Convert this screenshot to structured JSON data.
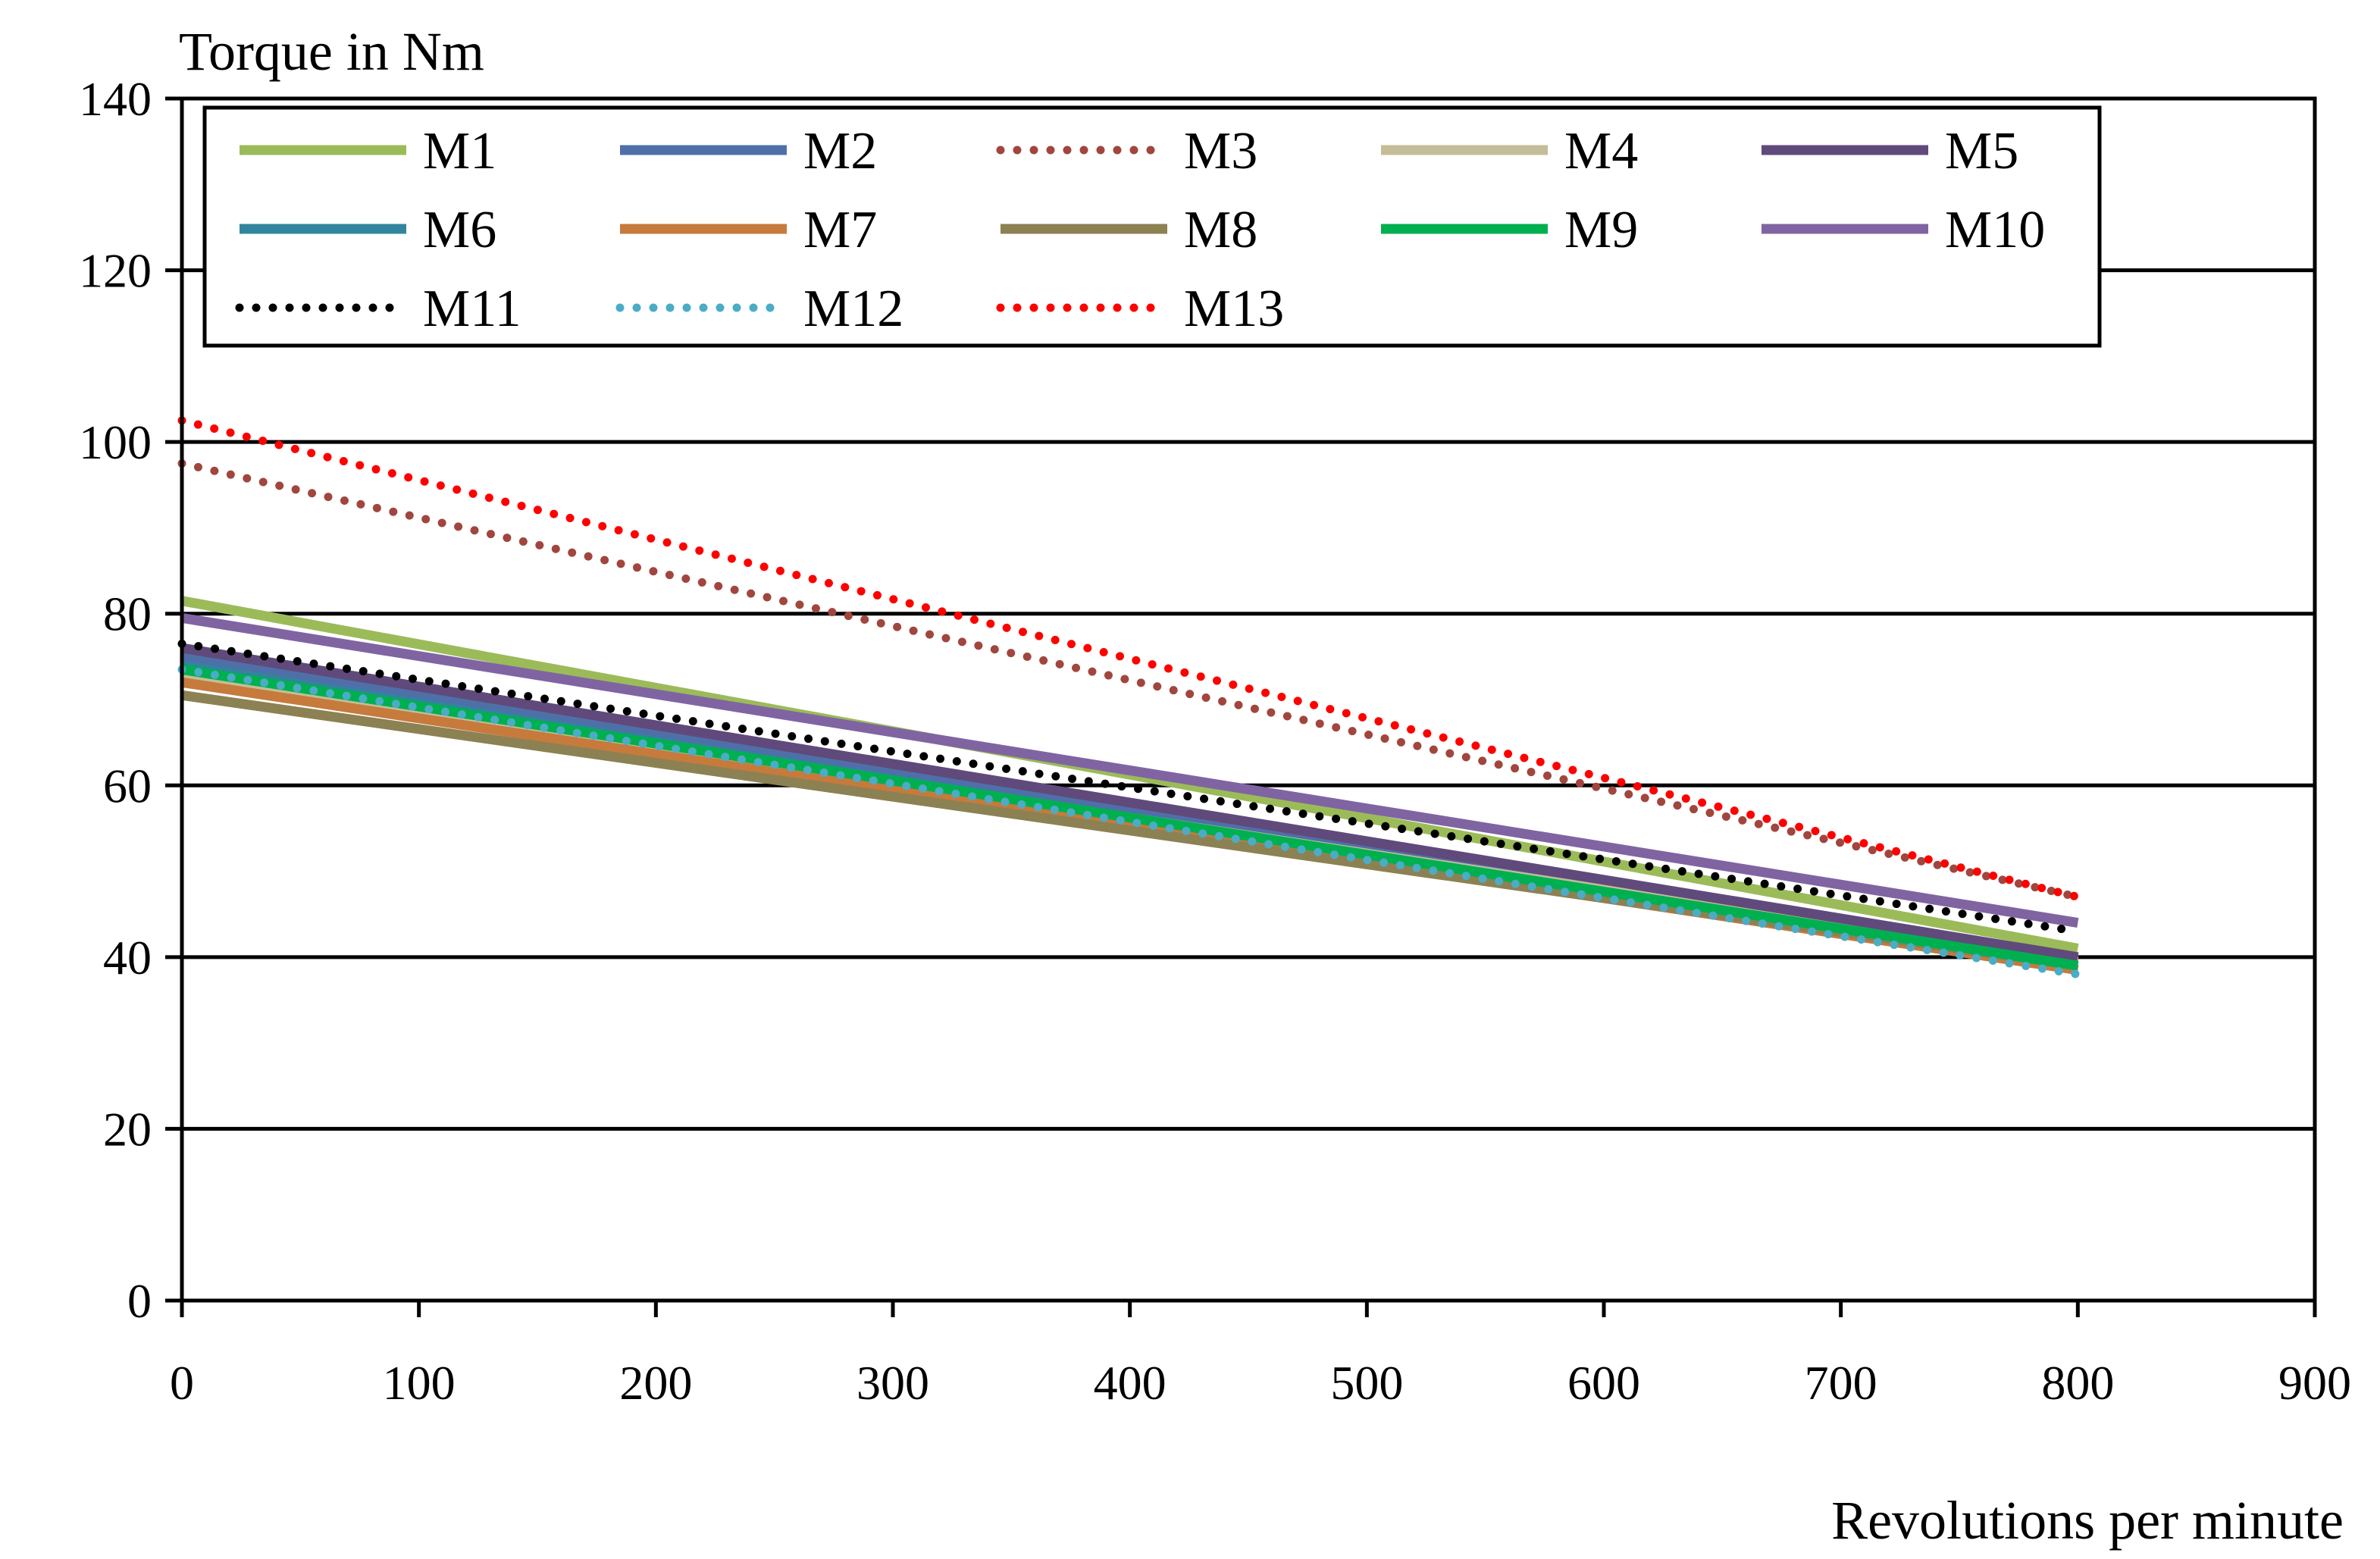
{
  "chart_data": {
    "type": "line",
    "title": "",
    "xlabel": "Revolutions per minute",
    "ylabel": "Torque in Nm",
    "xlim": [
      0,
      900
    ],
    "ylim": [
      0,
      140
    ],
    "x_ticks": [
      "0",
      "100",
      "200",
      "300",
      "400",
      "500",
      "600",
      "700",
      "800",
      "900"
    ],
    "y_ticks": [
      "0",
      "20",
      "40",
      "60",
      "80",
      "100",
      "120",
      "140"
    ],
    "grid": "horizontal",
    "legend_position": "top",
    "series": [
      {
        "name": "M1",
        "x": [
          0,
          800
        ],
        "values": [
          81.5,
          41.0
        ],
        "color": "#9bbb59",
        "dash": "solid"
      },
      {
        "name": "M2",
        "x": [
          0,
          800
        ],
        "values": [
          75.0,
          39.5
        ],
        "color": "#4f6fa8",
        "dash": "solid"
      },
      {
        "name": "M3",
        "x": [
          0,
          800
        ],
        "values": [
          97.5,
          47.0
        ],
        "color": "#a0463e",
        "dash": "dotted"
      },
      {
        "name": "M4",
        "x": [
          0,
          800
        ],
        "values": [
          73.0,
          39.5
        ],
        "color": "#c4bd97",
        "dash": "solid"
      },
      {
        "name": "M5",
        "x": [
          0,
          800
        ],
        "values": [
          76.0,
          40.0
        ],
        "color": "#604a7b",
        "dash": "solid"
      },
      {
        "name": "M6",
        "x": [
          0,
          800
        ],
        "values": [
          74.0,
          38.5
        ],
        "color": "#31859c",
        "dash": "solid"
      },
      {
        "name": "M7",
        "x": [
          0,
          800
        ],
        "values": [
          72.0,
          38.5
        ],
        "color": "#c67a3c",
        "dash": "solid"
      },
      {
        "name": "M8",
        "x": [
          0,
          800
        ],
        "values": [
          70.5,
          39.0
        ],
        "color": "#8c8152",
        "dash": "solid"
      },
      {
        "name": "M9",
        "x": [
          0,
          800
        ],
        "values": [
          73.5,
          39.0
        ],
        "color": "#00b050",
        "dash": "solid"
      },
      {
        "name": "M10",
        "x": [
          0,
          800
        ],
        "values": [
          79.5,
          44.0
        ],
        "color": "#8064a2",
        "dash": "solid"
      },
      {
        "name": "M11",
        "x": [
          0,
          800
        ],
        "values": [
          76.5,
          43.0
        ],
        "color": "#000000",
        "dash": "dotted"
      },
      {
        "name": "M12",
        "x": [
          0,
          800
        ],
        "values": [
          73.5,
          38.0
        ],
        "color": "#4bacc6",
        "dash": "dotted"
      },
      {
        "name": "M13",
        "x": [
          0,
          800
        ],
        "values": [
          102.5,
          47.0
        ],
        "color": "#ff0000",
        "dash": "dotted"
      }
    ]
  }
}
